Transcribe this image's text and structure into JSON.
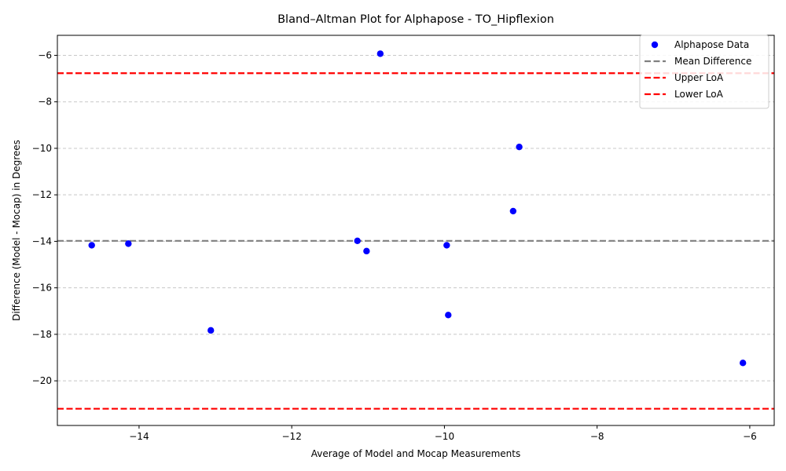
{
  "chart_data": {
    "type": "scatter",
    "title": "Bland–Altman Plot for Alphapose - TO_Hipflexion",
    "xlabel": "Average of Model and Mocap Measurements",
    "ylabel": "Difference (Model - Mocap) in Degrees",
    "xlim": [
      -15.07,
      -5.68
    ],
    "ylim": [
      -21.92,
      -5.14
    ],
    "xticks": [
      -14,
      -12,
      -10,
      -8,
      -6
    ],
    "yticks": [
      -20,
      -18,
      -16,
      -14,
      -12,
      -10,
      -8,
      -6
    ],
    "grid": "horizontal dashed",
    "legend_position": "top-right",
    "series": [
      {
        "name": "Alphapose Data",
        "color": "#0000ff",
        "points": [
          {
            "x": -14.62,
            "y": -14.17
          },
          {
            "x": -14.14,
            "y": -14.1
          },
          {
            "x": -13.06,
            "y": -17.83
          },
          {
            "x": -11.14,
            "y": -13.98
          },
          {
            "x": -11.02,
            "y": -14.42
          },
          {
            "x": -10.84,
            "y": -5.93
          },
          {
            "x": -9.97,
            "y": -14.17
          },
          {
            "x": -9.95,
            "y": -17.17
          },
          {
            "x": -9.1,
            "y": -12.7
          },
          {
            "x": -9.02,
            "y": -9.94
          },
          {
            "x": -6.09,
            "y": -19.23
          }
        ]
      }
    ],
    "reference_lines": [
      {
        "name": "Mean Difference",
        "y": -13.98,
        "color": "#808080"
      },
      {
        "name": "Upper LoA",
        "y": -6.77,
        "color": "#ff0000"
      },
      {
        "name": "Lower LoA",
        "y": -21.2,
        "color": "#ff0000"
      }
    ]
  }
}
